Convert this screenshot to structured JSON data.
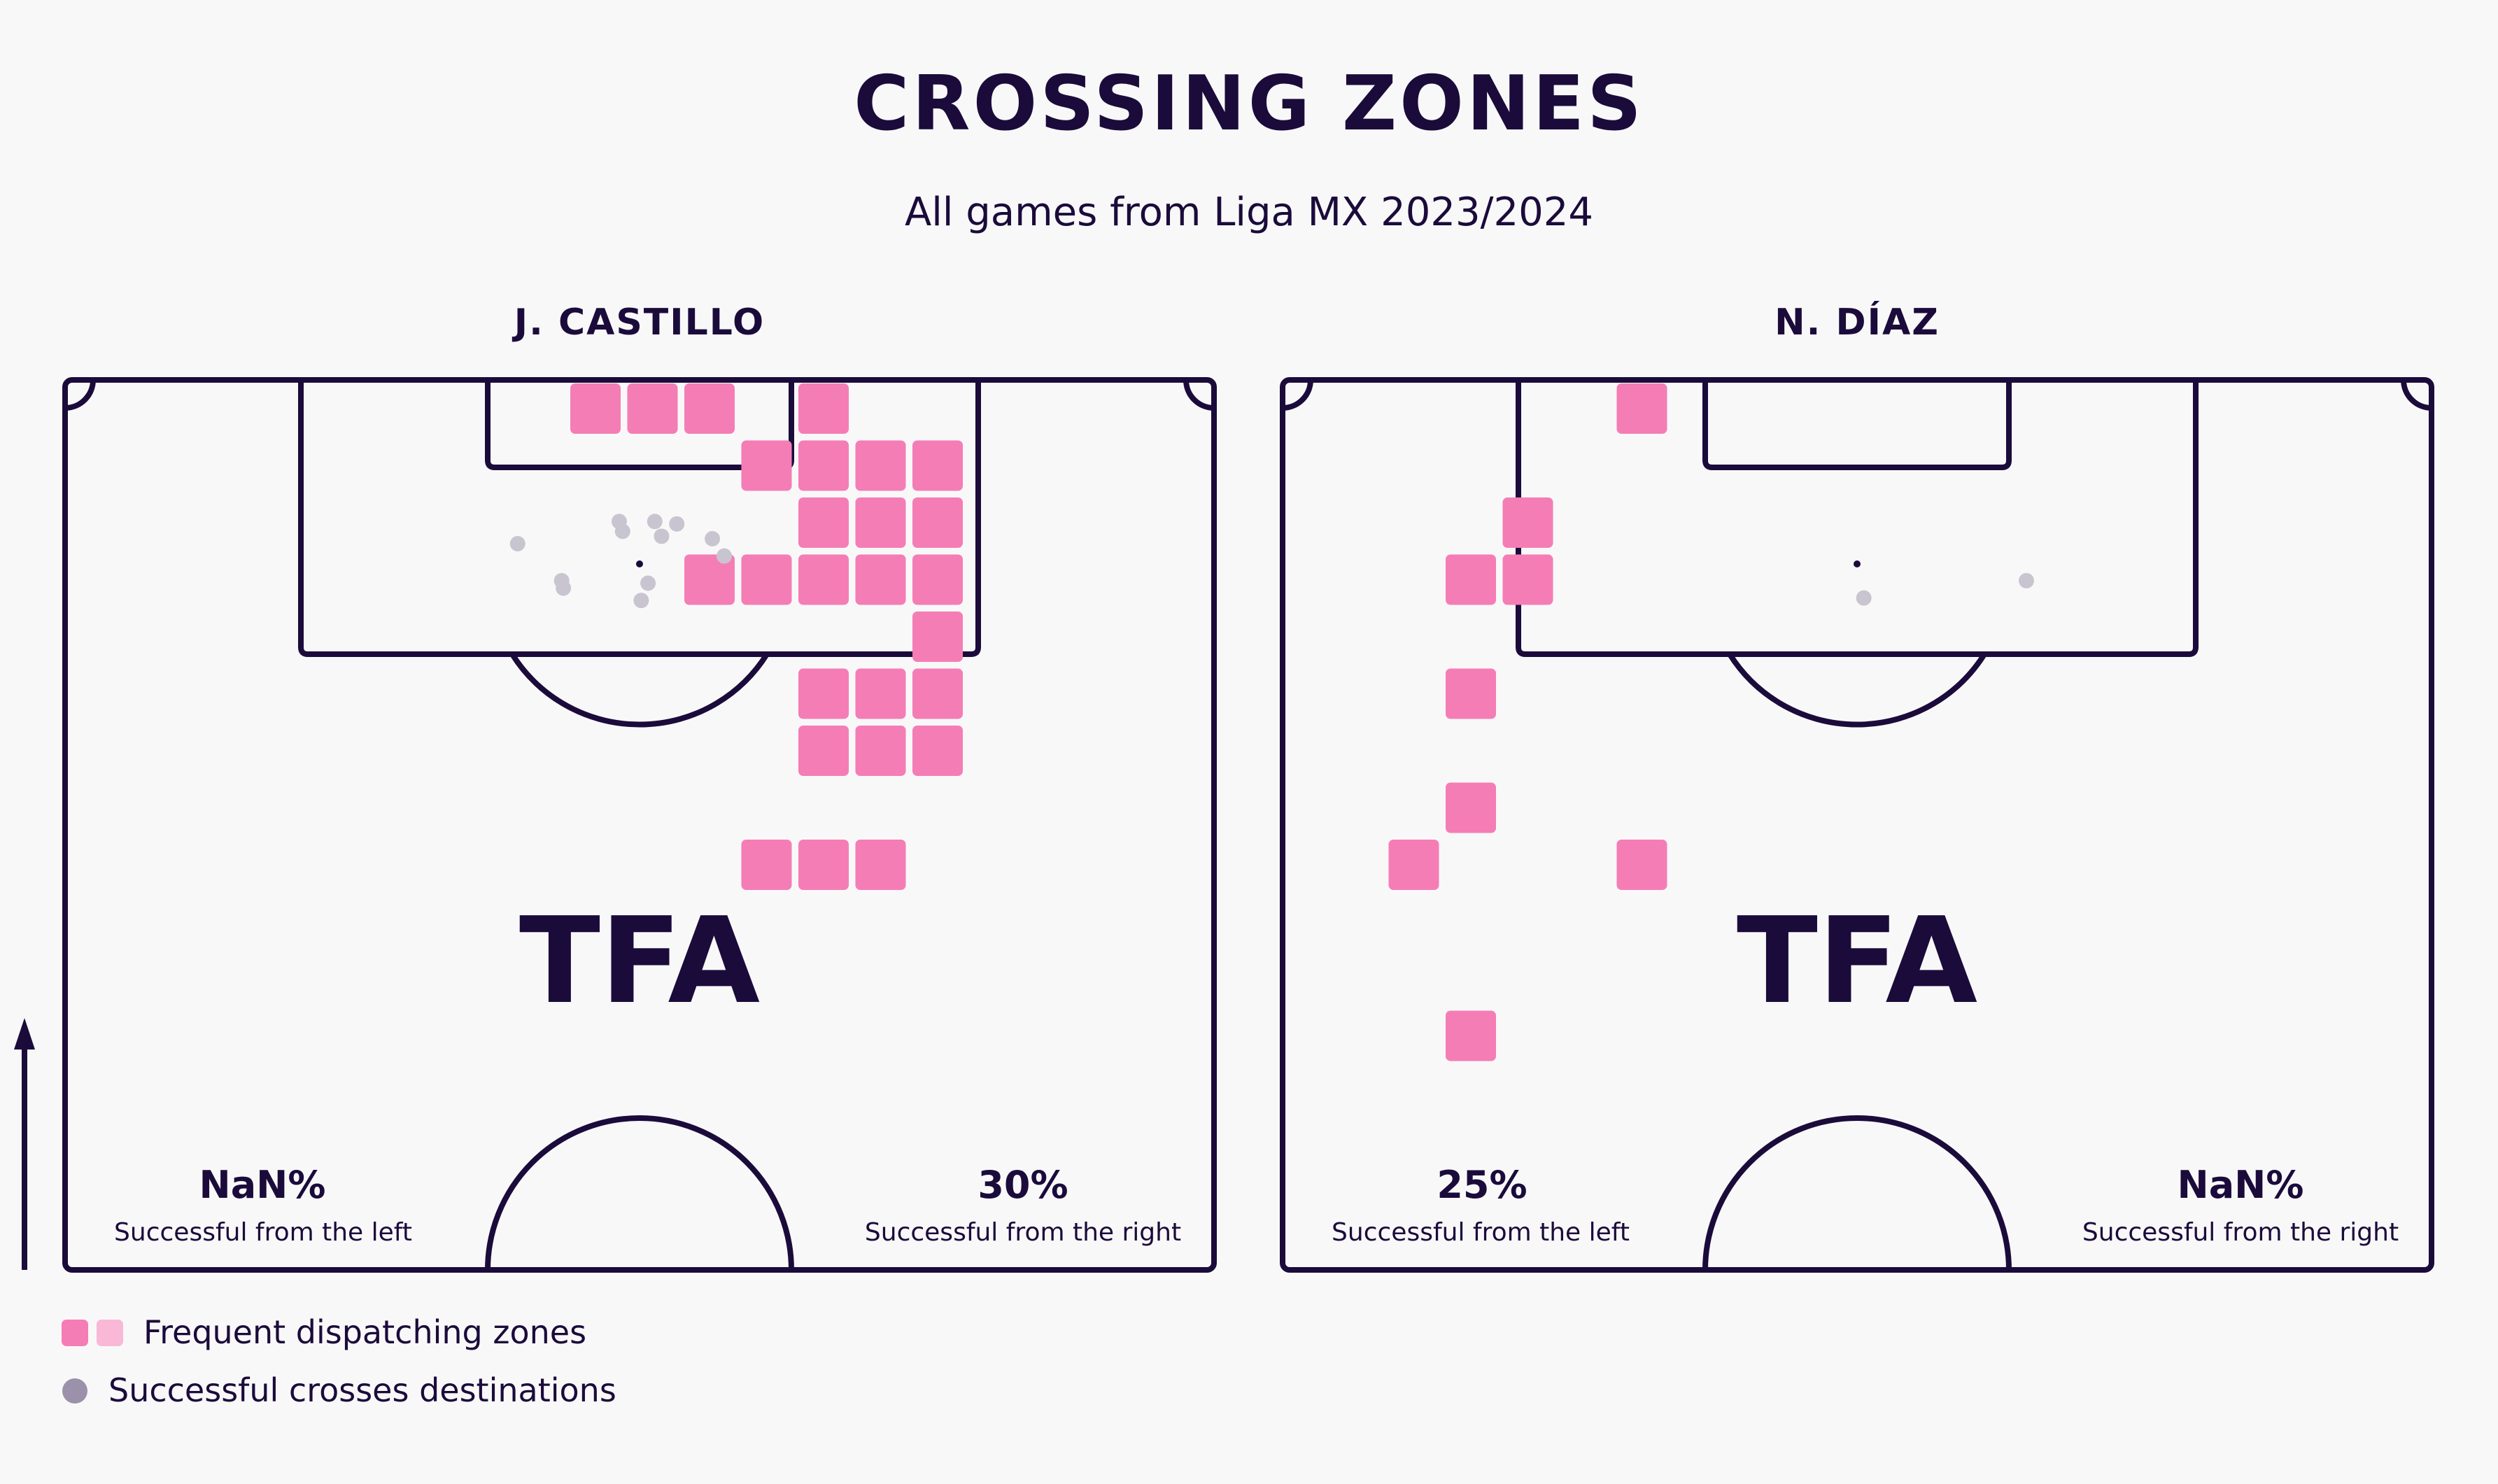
{
  "title": "CROSSING ZONES",
  "subtitle": "All games from Liga MX 2023/2024",
  "watermark": "TFA",
  "legend": {
    "zones_label": "Frequent dispatching zones",
    "destinations_label": "Successful crosses destinations"
  },
  "colors": {
    "background": "#f8f8f8",
    "ink": "#1b0b3b",
    "zone": "#f57db5",
    "zone_light": "#f9b8d6",
    "destination": "#c9c5d0",
    "destination_legend": "#9b91aa"
  },
  "chart_data": [
    {
      "type": "scatter",
      "player": "J. CASTILLO",
      "left": {
        "value": "NaN%",
        "label": "Successful from the left"
      },
      "right": {
        "value": "30%",
        "label": "Successful from the right"
      },
      "zones": [
        [
          8,
          0
        ],
        [
          9,
          0
        ],
        [
          10,
          0
        ],
        [
          12,
          0
        ],
        [
          11,
          1
        ],
        [
          12,
          1
        ],
        [
          13,
          1
        ],
        [
          14,
          1
        ],
        [
          12,
          2
        ],
        [
          13,
          2
        ],
        [
          14,
          2
        ],
        [
          10,
          3
        ],
        [
          11,
          3
        ],
        [
          12,
          3
        ],
        [
          13,
          3
        ],
        [
          14,
          3
        ],
        [
          14,
          4
        ],
        [
          12,
          5
        ],
        [
          13,
          5
        ],
        [
          14,
          5
        ],
        [
          12,
          6
        ],
        [
          13,
          6
        ],
        [
          14,
          6
        ],
        [
          11,
          8
        ],
        [
          12,
          8
        ],
        [
          13,
          8
        ]
      ],
      "destinations": [
        [
          -0.1,
          0.5
        ],
        [
          -0.12,
          0.46
        ],
        [
          0.09,
          0.46
        ],
        [
          0.22,
          0.47
        ],
        [
          0.05,
          0.71
        ],
        [
          0.13,
          0.52
        ],
        [
          0.01,
          0.78
        ],
        [
          0.43,
          0.53
        ],
        [
          -0.72,
          0.55
        ],
        [
          0.5,
          0.6
        ],
        [
          -0.45,
          0.73
        ],
        [
          -0.46,
          0.7
        ]
      ]
    },
    {
      "type": "scatter",
      "player": "N. DÍAZ",
      "left": {
        "value": "25%",
        "label": "Successful from the left"
      },
      "right": {
        "value": "NaN%",
        "label": "Successful from the right"
      },
      "zones": [
        [
          5,
          0
        ],
        [
          3,
          2
        ],
        [
          2,
          3
        ],
        [
          3,
          3
        ],
        [
          2,
          5
        ],
        [
          2,
          7
        ],
        [
          1,
          8
        ],
        [
          5,
          8
        ],
        [
          2,
          11
        ]
      ],
      "destinations": [
        [
          0.04,
          0.77
        ],
        [
          1.0,
          0.7
        ]
      ]
    }
  ]
}
